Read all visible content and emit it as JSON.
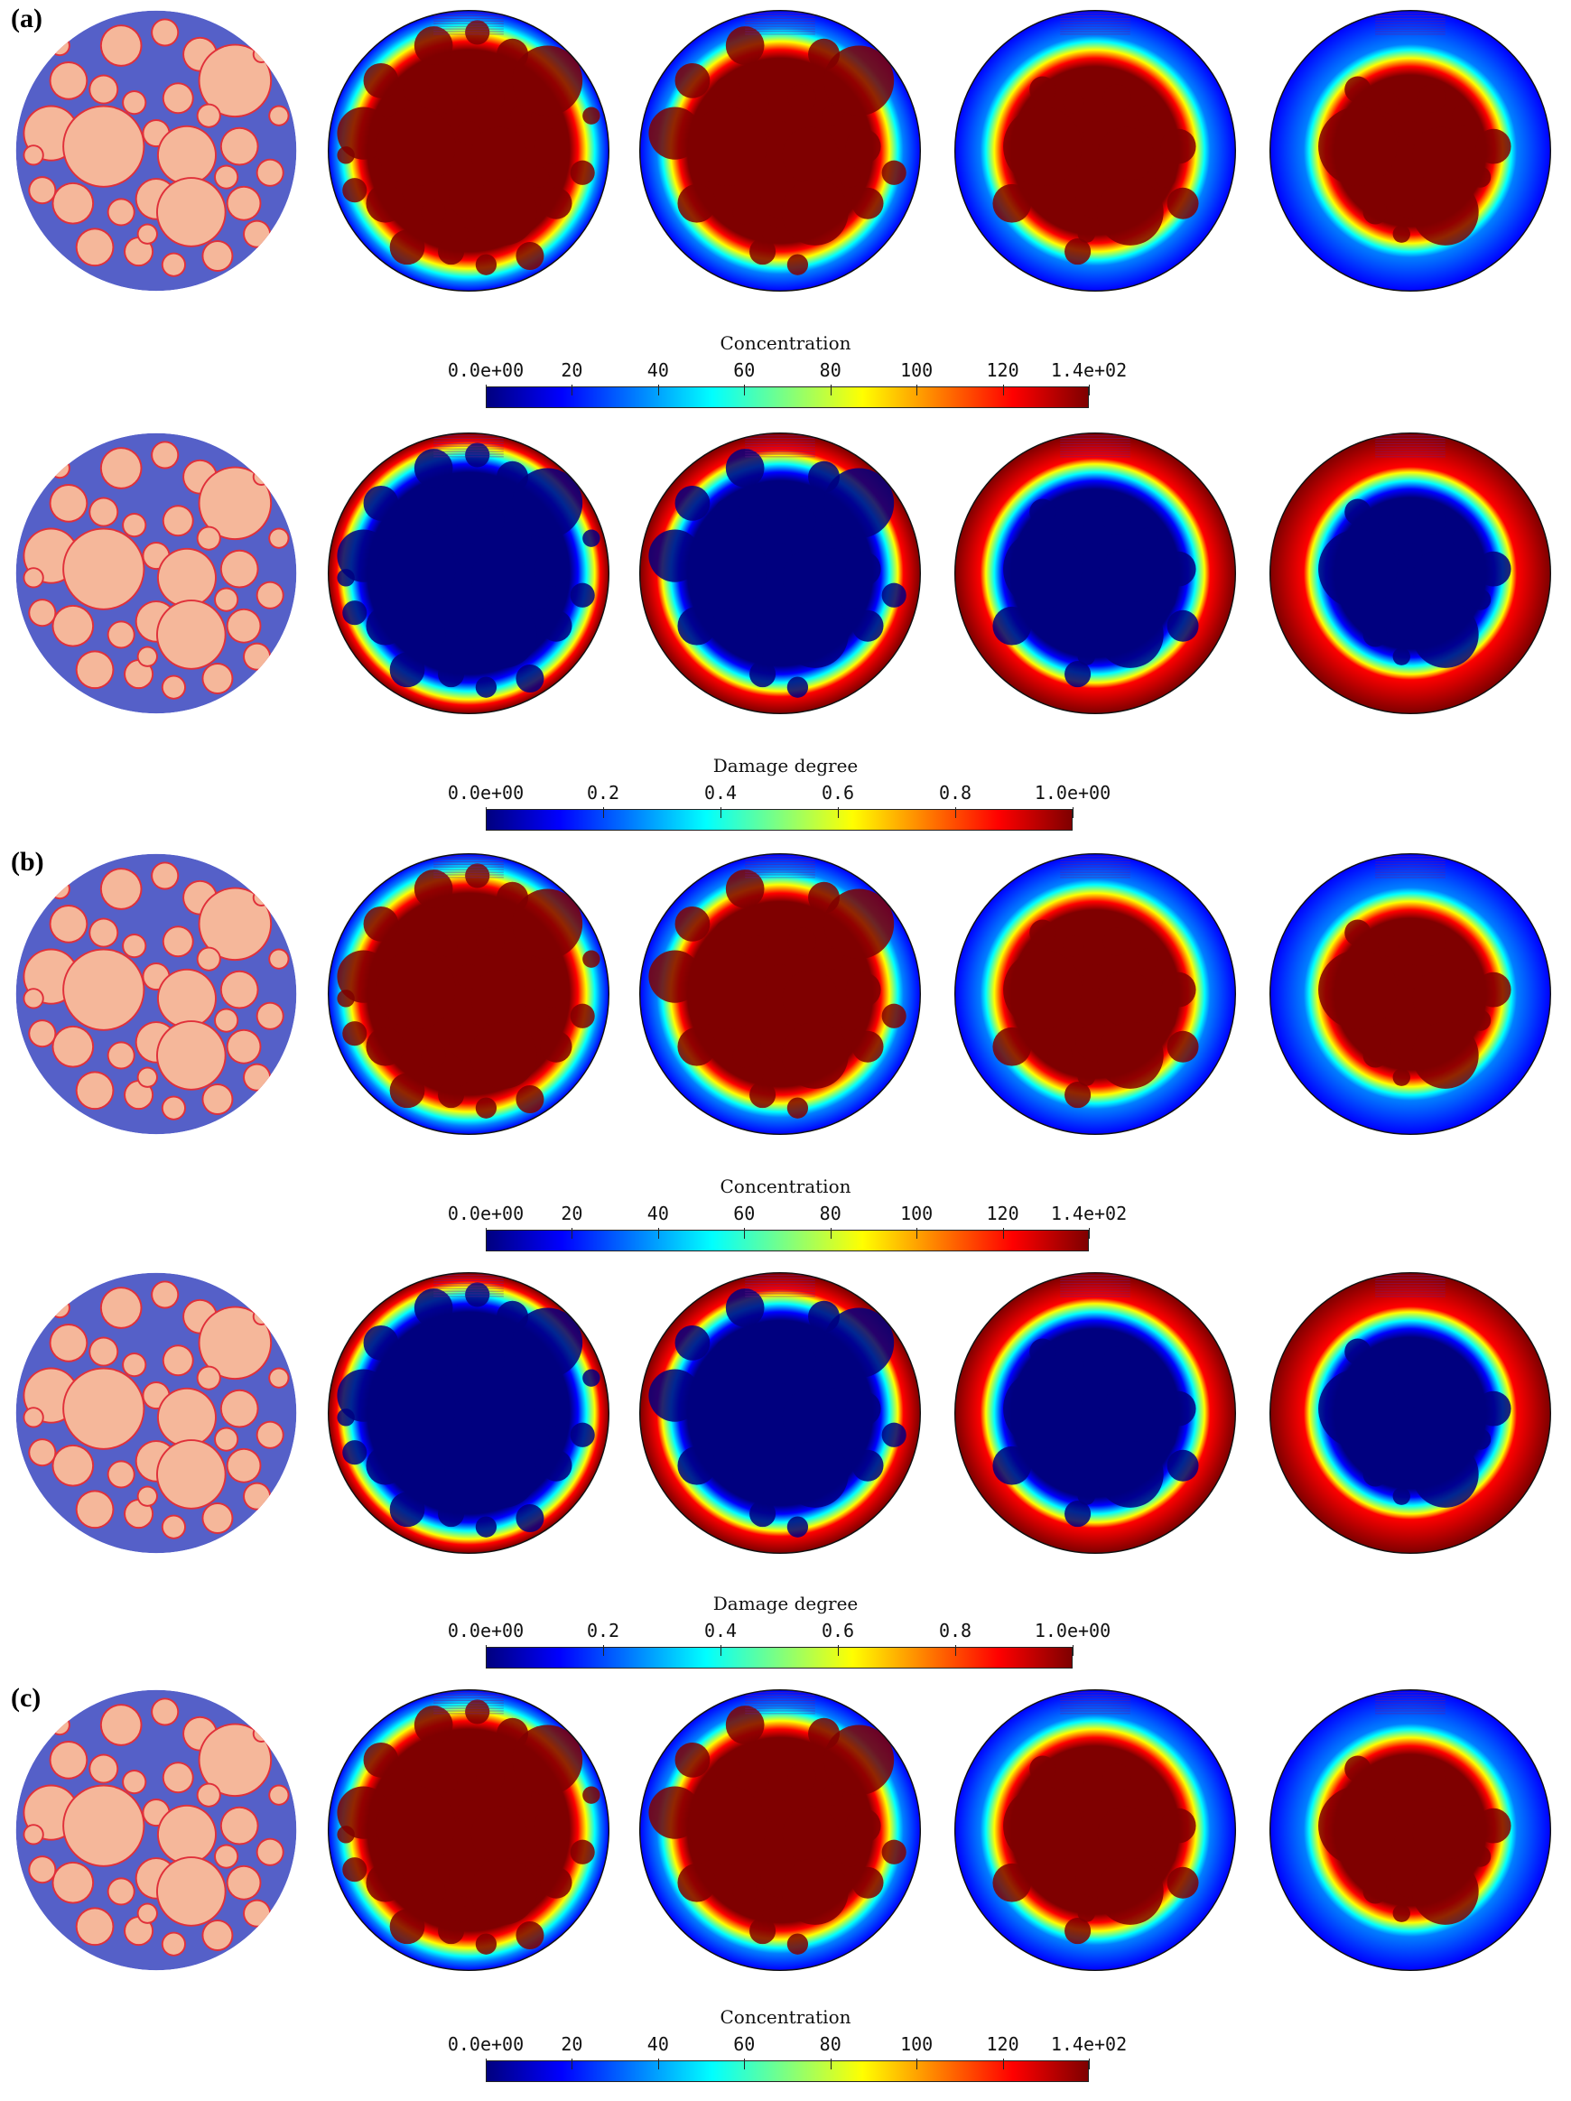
{
  "panels": [
    {
      "label": "(a)"
    },
    {
      "label": "(b)"
    },
    {
      "label": "(c)"
    }
  ],
  "colorbars": {
    "concentration": {
      "title": "Concentration",
      "ticks": [
        "0.0e+00",
        "20",
        "40",
        "60",
        "80",
        "100",
        "120",
        "1.4e+02"
      ],
      "range": [
        0,
        140
      ]
    },
    "damage": {
      "title": "Damage degree",
      "ticks": [
        "0.0e+00",
        "0.2",
        "0.4",
        "0.6",
        "0.8",
        "1.0e+00"
      ],
      "range": [
        0,
        1
      ]
    }
  },
  "colors": {
    "matrix": "#5560c8",
    "aggregate": "#f5b79a",
    "aggregate_edge": "#e0303a",
    "jet": [
      "#00007f",
      "#0000ff",
      "#007fff",
      "#00ffff",
      "#7fff7f",
      "#ffff00",
      "#ff7f00",
      "#ff0000",
      "#7f0000"
    ]
  }
}
